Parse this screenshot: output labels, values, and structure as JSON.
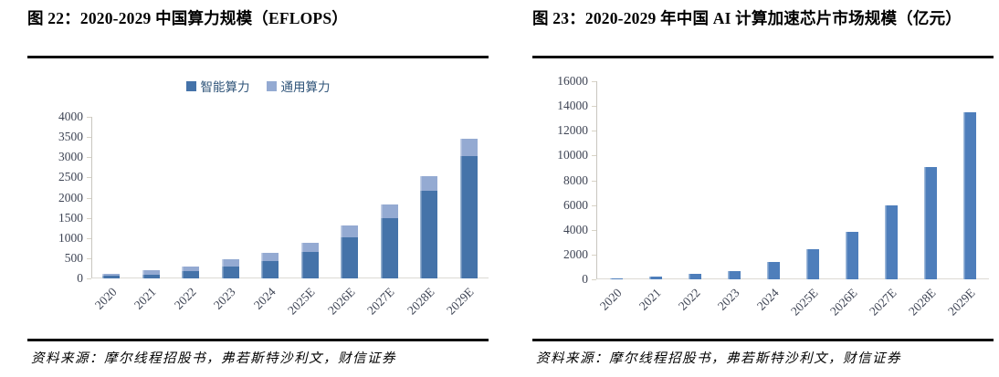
{
  "page": {
    "panels": [
      {
        "title": "图 22：2020-2029 中国算力规模（EFLOPS）",
        "source": "资料来源：摩尔线程招股书，弗若斯特沙利文，财信证券"
      },
      {
        "title": "图 23：2020-2029 年中国 AI 计算加速芯片市场规模（亿元）",
        "source": "资料来源：摩尔线程招股书，弗若斯特沙利文，财信证券"
      }
    ]
  },
  "chart_data": [
    {
      "type": "bar",
      "stacked": true,
      "title": "图 22：2020-2029 中国算力规模（EFLOPS）",
      "unit": "EFLOPS",
      "categories": [
        "2020",
        "2021",
        "2022",
        "2023",
        "2024",
        "2025E",
        "2026E",
        "2027E",
        "2028E",
        "2029E"
      ],
      "series": [
        {
          "name": "智能算力",
          "color": "#4573A9",
          "values": [
            60,
            100,
            180,
            290,
            430,
            660,
            1010,
            1500,
            2180,
            3030
          ]
        },
        {
          "name": "通用算力",
          "color": "#94AAD2",
          "values": [
            55,
            95,
            115,
            180,
            195,
            220,
            290,
            320,
            340,
            430
          ]
        }
      ],
      "totals": [
        115,
        195,
        295,
        470,
        625,
        880,
        1300,
        1820,
        2520,
        3460
      ],
      "ylim": [
        0,
        4000
      ],
      "ytick_step": 500,
      "legend_position": "top",
      "grid": false
    },
    {
      "type": "bar",
      "stacked": false,
      "title": "图 23：2020-2029 年中国 AI 计算加速芯片市场规模（亿元）",
      "unit": "亿元",
      "categories": [
        "2020",
        "2021",
        "2022",
        "2023",
        "2024",
        "2025E",
        "2026E",
        "2027E",
        "2028E",
        "2029E"
      ],
      "series": [
        {
          "name": "中国 AI 计算加速芯片市场规模",
          "color": "#4E7EBB",
          "values": [
            100,
            250,
            450,
            650,
            1400,
            2400,
            3850,
            5950,
            9100,
            13500
          ]
        }
      ],
      "ylim": [
        0,
        16000
      ],
      "ytick_step": 2000,
      "legend_position": "none",
      "grid": false
    }
  ]
}
